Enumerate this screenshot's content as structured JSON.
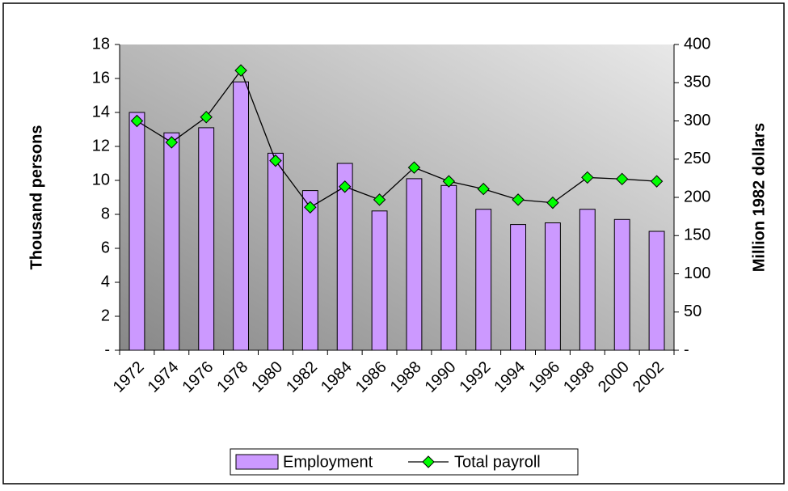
{
  "chart_data": {
    "type": "bar-line",
    "categories": [
      "1972",
      "1974",
      "1976",
      "1978",
      "1980",
      "1982",
      "1984",
      "1986",
      "1988",
      "1990",
      "1992",
      "1994",
      "1996",
      "1998",
      "2000",
      "2002"
    ],
    "y_label": "Thousand persons",
    "y2_label": "Million 1982 dollars",
    "series": [
      {
        "name": "Employment",
        "color": "#cc99ff",
        "type": "bar",
        "values": [
          14.0,
          12.8,
          13.1,
          15.8,
          11.6,
          9.4,
          11.0,
          8.2,
          10.1,
          9.7,
          8.3,
          7.4,
          7.5,
          8.3,
          7.7,
          7.0
        ]
      },
      {
        "name": "Total payroll",
        "color": "#00ff00",
        "type": "line",
        "axis": "y2",
        "values": [
          300,
          272,
          305,
          366,
          248,
          187,
          214,
          197,
          239,
          221,
          211,
          197,
          193,
          226,
          224,
          221
        ]
      }
    ],
    "ylim": [
      0,
      18
    ],
    "yticks": [
      {
        "value": 0,
        "label": "-"
      },
      2,
      4,
      6,
      8,
      10,
      12,
      14,
      16,
      18
    ],
    "y2lim": [
      0,
      400
    ],
    "y2ticks": [
      {
        "value": 0,
        "label": "-"
      },
      50,
      100,
      150,
      200,
      250,
      300,
      350,
      400
    ],
    "legend": "bottom"
  }
}
